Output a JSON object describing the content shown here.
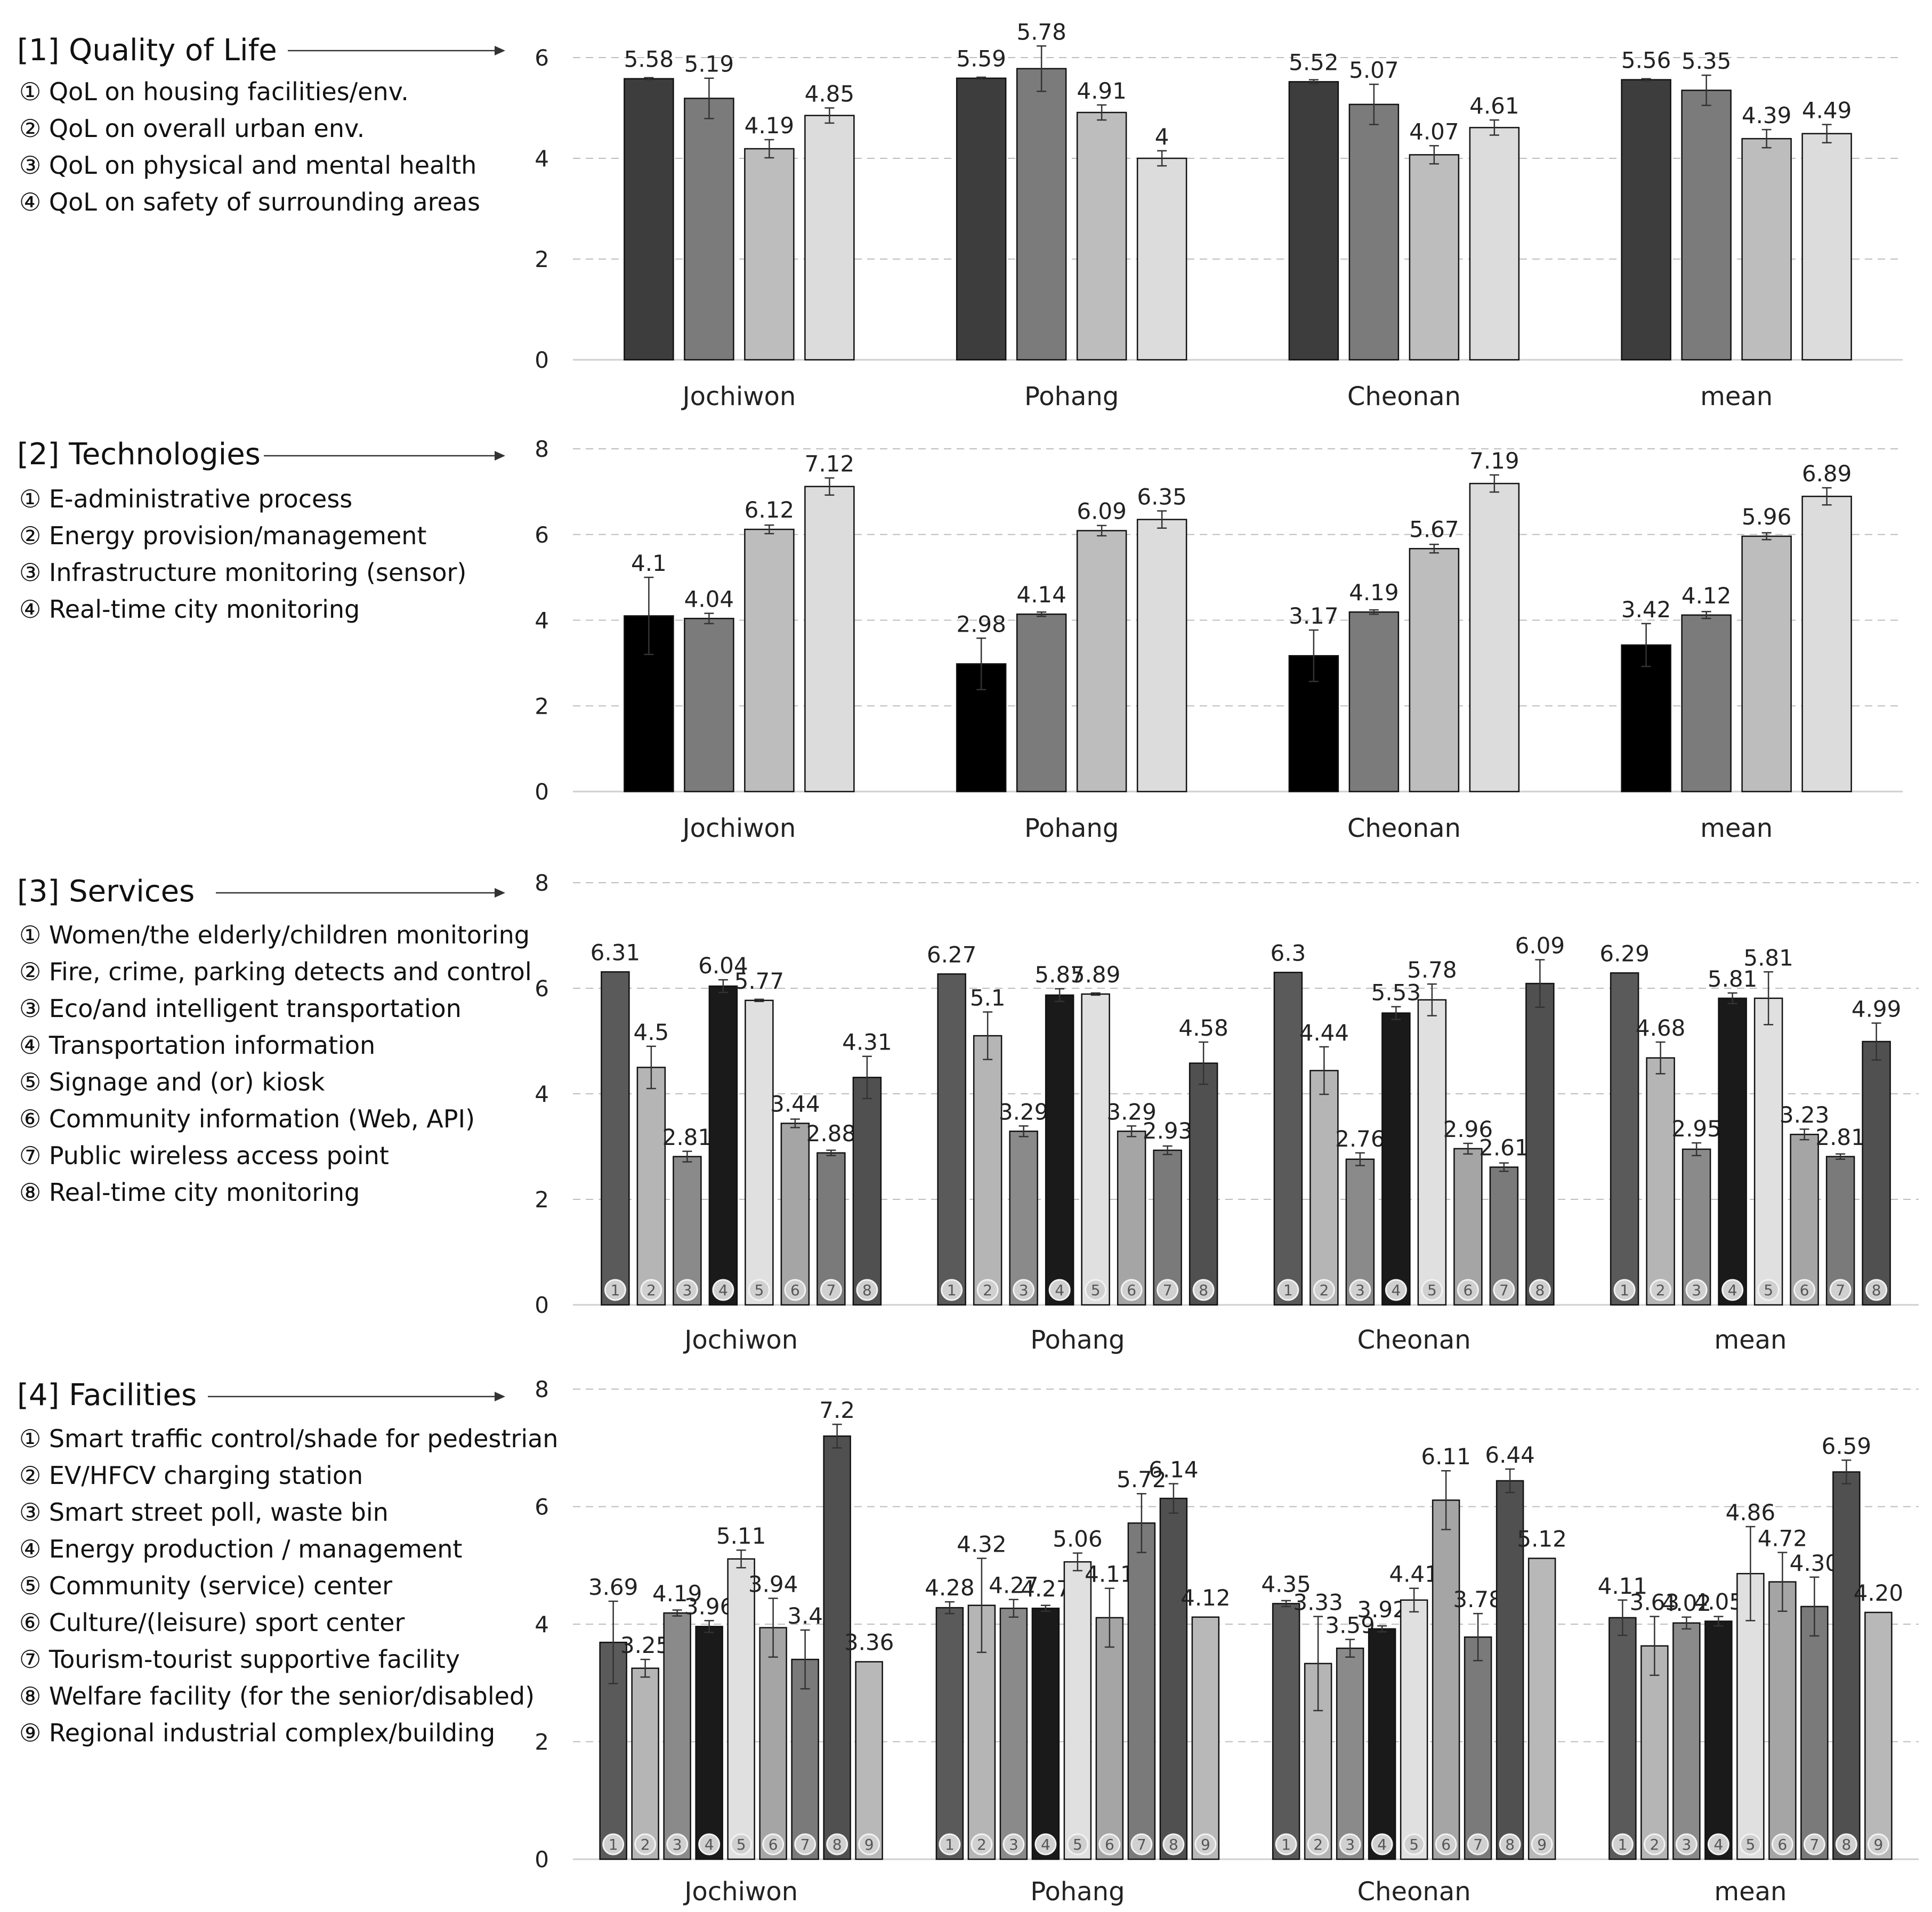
{
  "chart_data": [
    {
      "type": "bar",
      "title": "[1] Quality of Life",
      "legend": [
        "① QoL on housing facilities/env.",
        "② QoL on overall urban env.",
        "③ QoL on physical and mental health",
        "④ QoL on safety of surrounding areas"
      ],
      "categories": [
        "Jochiwon",
        "Pohang",
        "Cheonan",
        "mean"
      ],
      "ylim": [
        0,
        6
      ],
      "yticks": [
        "0",
        "2",
        "4",
        "6"
      ],
      "colors": [
        "#3d3d3d",
        "#7b7b7b",
        "#bdbdbd",
        "#dcdcdc"
      ],
      "series": [
        {
          "name": "①",
          "values": [
            5.58,
            5.59,
            5.52,
            5.56
          ],
          "labels": [
            "5.58",
            "5.59",
            "5.52",
            "5.56"
          ],
          "errors": [
            0.02,
            0.02,
            0.04,
            0.02
          ]
        },
        {
          "name": "②",
          "values": [
            5.19,
            5.78,
            5.07,
            5.35
          ],
          "labels": [
            "5.19",
            "5.78",
            "5.07",
            "5.35"
          ],
          "errors": [
            0.4,
            0.45,
            0.4,
            0.3
          ]
        },
        {
          "name": "③",
          "values": [
            4.19,
            4.91,
            4.07,
            4.39
          ],
          "labels": [
            "4.19",
            "4.91",
            "4.07",
            "4.39"
          ],
          "errors": [
            0.18,
            0.15,
            0.18,
            0.18
          ]
        },
        {
          "name": "④",
          "values": [
            4.85,
            4.0,
            4.61,
            4.49
          ],
          "labels": [
            "4.85",
            "4",
            "4.61",
            "4.49"
          ],
          "errors": [
            0.15,
            0.15,
            0.15,
            0.18
          ]
        }
      ],
      "show_numbers": false
    },
    {
      "type": "bar",
      "title": "[2] Technologies",
      "legend": [
        "① E-administrative process",
        "② Energy provision/management",
        "③ Infrastructure monitoring (sensor)",
        "④ Real-time city monitoring"
      ],
      "categories": [
        "Jochiwon",
        "Pohang",
        "Cheonan",
        "mean"
      ],
      "ylim": [
        0,
        8
      ],
      "yticks": [
        "0",
        "2",
        "4",
        "6",
        "8"
      ],
      "colors": [
        "#000000",
        "#7b7b7b",
        "#bdbdbd",
        "#dcdcdc"
      ],
      "series": [
        {
          "name": "①",
          "values": [
            4.1,
            2.98,
            3.17,
            3.42
          ],
          "labels": [
            "4.1",
            "2.98",
            "3.17",
            "3.42"
          ],
          "errors": [
            0.9,
            0.6,
            0.6,
            0.5
          ]
        },
        {
          "name": "②",
          "values": [
            4.04,
            4.14,
            4.19,
            4.12
          ],
          "labels": [
            "4.04",
            "4.14",
            "4.19",
            "4.12"
          ],
          "errors": [
            0.12,
            0.05,
            0.05,
            0.08
          ]
        },
        {
          "name": "③",
          "values": [
            6.12,
            6.09,
            5.67,
            5.96
          ],
          "labels": [
            "6.12",
            "6.09",
            "5.67",
            "5.96"
          ],
          "errors": [
            0.1,
            0.12,
            0.1,
            0.08
          ]
        },
        {
          "name": "④",
          "values": [
            7.12,
            6.35,
            7.19,
            6.89
          ],
          "labels": [
            "7.12",
            "6.35",
            "7.19",
            "6.89"
          ],
          "errors": [
            0.2,
            0.2,
            0.2,
            0.2
          ]
        }
      ],
      "show_numbers": false
    },
    {
      "type": "bar",
      "title": "[3] Services",
      "legend": [
        "① Women/the elderly/children monitoring",
        "② Fire, crime, parking detects and control",
        "③ Eco/and intelligent transportation",
        "④ Transportation information",
        "⑤ Signage and (or) kiosk",
        "⑥ Community information (Web, API)",
        "⑦ Public wireless access point",
        "⑧ Real-time city monitoring"
      ],
      "categories": [
        "Jochiwon",
        "Pohang",
        "Cheonan",
        "mean"
      ],
      "ylim": [
        0,
        8
      ],
      "yticks": [
        "0",
        "2",
        "4",
        "6",
        "8"
      ],
      "colors": [
        "#5a5a5a",
        "#b5b5b5",
        "#8a8a8a",
        "#1a1a1a",
        "#e0e0e0",
        "#a5a5a5",
        "#7a7a7a",
        "#505050"
      ],
      "numbers": [
        "1",
        "2",
        "3",
        "4",
        "5",
        "6",
        "7",
        "8"
      ],
      "series": [
        {
          "name": "①",
          "values": [
            6.31,
            6.27,
            6.3,
            6.29
          ],
          "labels": [
            "6.31",
            "6.27",
            "6.3",
            "6.29"
          ],
          "errors": [
            0,
            0,
            0,
            0
          ]
        },
        {
          "name": "②",
          "values": [
            4.5,
            5.1,
            4.44,
            4.68
          ],
          "labels": [
            "4.5",
            "5.1",
            "4.44",
            "4.68"
          ],
          "errors": [
            0.4,
            0.45,
            0.45,
            0.3
          ]
        },
        {
          "name": "③",
          "values": [
            2.81,
            3.29,
            2.76,
            2.95
          ],
          "labels": [
            "2.81",
            "3.29",
            "2.76",
            "2.95"
          ],
          "errors": [
            0.1,
            0.1,
            0.12,
            0.12
          ]
        },
        {
          "name": "④",
          "values": [
            6.04,
            5.87,
            5.53,
            5.81
          ],
          "labels": [
            "6.04",
            "5.87",
            "5.53",
            "5.81"
          ],
          "errors": [
            0.12,
            0.12,
            0.12,
            0.1
          ]
        },
        {
          "name": "⑤",
          "values": [
            5.77,
            5.89,
            5.78,
            5.81
          ],
          "labels": [
            "5.77",
            "5.89",
            "5.78",
            "5.81"
          ],
          "errors": [
            0.02,
            0.02,
            0.3,
            0.5
          ]
        },
        {
          "name": "⑥",
          "values": [
            3.44,
            3.29,
            2.96,
            3.23
          ],
          "labels": [
            "3.44",
            "3.29",
            "2.96",
            "3.23"
          ],
          "errors": [
            0.08,
            0.1,
            0.1,
            0.1
          ]
        },
        {
          "name": "⑦",
          "values": [
            2.88,
            2.93,
            2.61,
            2.81
          ],
          "labels": [
            "2.88",
            "2.93",
            "2.61",
            "2.81"
          ],
          "errors": [
            0.05,
            0.08,
            0.08,
            0.05
          ]
        },
        {
          "name": "⑧",
          "values": [
            4.31,
            4.58,
            6.09,
            4.99
          ],
          "labels": [
            "4.31",
            "4.58",
            "6.09",
            "4.99"
          ],
          "errors": [
            0.4,
            0.4,
            0.45,
            0.35
          ]
        }
      ],
      "show_numbers": true
    },
    {
      "type": "bar",
      "title": "[4] Facilities",
      "legend": [
        "① Smart traffic control/shade for pedestrian",
        "② EV/HFCV charging station",
        "③ Smart street poll, waste bin",
        "④ Energy production / management",
        "⑤ Community (service) center",
        "⑥ Culture/(leisure) sport center",
        "⑦ Tourism-tourist supportive facility",
        "⑧ Welfare facility (for the senior/disabled)",
        "⑨ Regional industrial complex/building"
      ],
      "categories": [
        "Jochiwon",
        "Pohang",
        "Cheonan",
        "mean"
      ],
      "ylim": [
        0,
        8
      ],
      "yticks": [
        "0",
        "2",
        "4",
        "6",
        "8"
      ],
      "colors": [
        "#5a5a5a",
        "#b5b5b5",
        "#8a8a8a",
        "#1a1a1a",
        "#e0e0e0",
        "#a5a5a5",
        "#7a7a7a",
        "#505050",
        "#b8b8b8"
      ],
      "numbers": [
        "1",
        "2",
        "3",
        "4",
        "5",
        "6",
        "7",
        "8",
        "9"
      ],
      "series": [
        {
          "name": "①",
          "values": [
            3.69,
            4.28,
            4.35,
            4.11
          ],
          "labels": [
            "3.69",
            "4.28",
            "4.35",
            "4.11"
          ],
          "errors": [
            0.7,
            0.1,
            0.05,
            0.3
          ]
        },
        {
          "name": "②",
          "values": [
            3.25,
            4.32,
            3.33,
            3.63
          ],
          "labels": [
            "3.25",
            "4.32",
            "3.33",
            "3.63"
          ],
          "errors": [
            0.15,
            0.8,
            0.8,
            0.5
          ]
        },
        {
          "name": "③",
          "values": [
            4.19,
            4.27,
            3.59,
            4.02
          ],
          "labels": [
            "4.19",
            "4.27",
            "3.59",
            "4.02"
          ],
          "errors": [
            0.05,
            0.15,
            0.15,
            0.1
          ]
        },
        {
          "name": "④",
          "values": [
            3.96,
            4.27,
            3.92,
            4.05
          ],
          "labels": [
            "3.96",
            "4.27",
            "3.92",
            "4.05"
          ],
          "errors": [
            0.1,
            0.05,
            0.05,
            0.08
          ]
        },
        {
          "name": "⑤",
          "values": [
            5.11,
            5.06,
            4.41,
            4.86
          ],
          "labels": [
            "5.11",
            "5.06",
            "4.41",
            "4.86"
          ],
          "errors": [
            0.15,
            0.15,
            0.2,
            0.8
          ]
        },
        {
          "name": "⑥",
          "values": [
            3.94,
            4.11,
            6.11,
            4.72
          ],
          "labels": [
            "3.94",
            "4.11",
            "6.11",
            "4.72"
          ],
          "errors": [
            0.5,
            0.5,
            0.5,
            0.5
          ]
        },
        {
          "name": "⑦",
          "values": [
            3.4,
            5.72,
            3.78,
            4.3
          ],
          "labels": [
            "3.4",
            "5.72",
            "3.78",
            "4.30"
          ],
          "errors": [
            0.5,
            0.5,
            0.4,
            0.5
          ]
        },
        {
          "name": "⑧",
          "values": [
            7.2,
            6.14,
            6.44,
            6.59
          ],
          "labels": [
            "7.2",
            "6.14",
            "6.44",
            "6.59"
          ],
          "errors": [
            0.2,
            0.25,
            0.2,
            0.2
          ]
        },
        {
          "name": "⑨",
          "values": [
            3.36,
            4.12,
            5.12,
            4.2
          ],
          "labels": [
            "3.36",
            "4.12",
            "5.12",
            "4.20"
          ],
          "errors": [
            0,
            0,
            0,
            0
          ]
        }
      ],
      "show_numbers": true
    }
  ]
}
